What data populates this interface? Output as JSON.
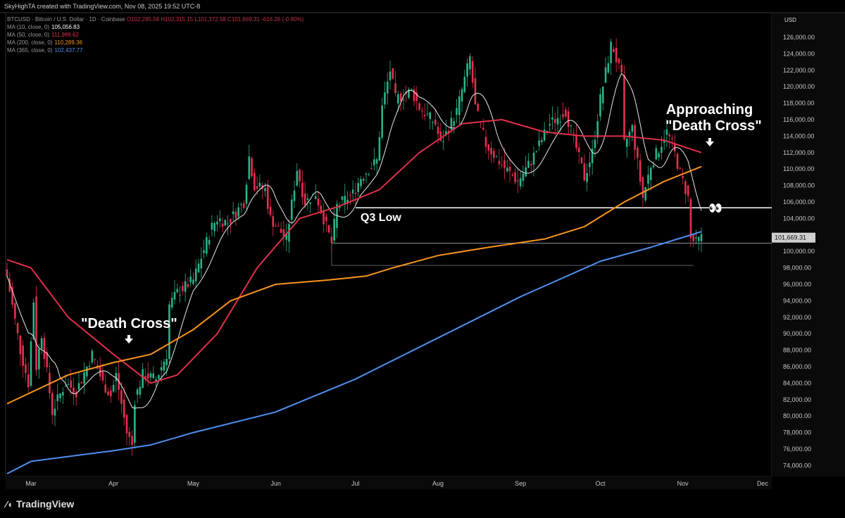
{
  "header": {
    "credit": "SkyHighTA created with TradingView.com, Nov 08, 2025 19:52 UTC-8"
  },
  "legend": {
    "symbol": "BTCUSD · Bitcoin / U.S. Dollar · 1D · Coinbase",
    "ohlc": "O102,285.58 H102,315.15 L101,372.58 C101,669.31 -616.26 (-0.60%)",
    "ma": [
      {
        "label": "MA (10, close, 0)",
        "value": "105,056.83",
        "color": "#e8e8e8"
      },
      {
        "label": "MA (50, close, 0)",
        "value": "111,989.62",
        "color": "#e0304a"
      },
      {
        "label": "MA (200, close, 0)",
        "value": "110,289.36",
        "color": "#f7941d"
      },
      {
        "label": "MA (365, close, 0)",
        "value": "102,437.77",
        "color": "#4f8ff0"
      }
    ]
  },
  "annotations": {
    "death_cross": "\"Death Cross\"",
    "approaching_1": "Approaching",
    "approaching_2": "\"Death Cross\"",
    "q3_low": "Q3 Low",
    "eyes": "👀"
  },
  "footer": {
    "brand": "TradingView"
  },
  "chart_data": {
    "type": "candlestick",
    "currency": "USD",
    "last_price": "101,669.31",
    "ylim": [
      72000,
      127000
    ],
    "yticks": [
      126000,
      124000,
      122000,
      120000,
      118000,
      116000,
      114000,
      112000,
      110000,
      108000,
      106000,
      104000,
      100000,
      98000,
      96000,
      94000,
      92000,
      90000,
      88000,
      86000,
      84000,
      82000,
      80000,
      78000,
      76000,
      74000
    ],
    "xticks": [
      {
        "date": "2025-03-01",
        "label": "Mar"
      },
      {
        "date": "2025-04-01",
        "label": "Apr"
      },
      {
        "date": "2025-05-01",
        "label": "May"
      },
      {
        "date": "2025-06-01",
        "label": "Jun"
      },
      {
        "date": "2025-07-01",
        "label": "Jul"
      },
      {
        "date": "2025-08-01",
        "label": "Aug"
      },
      {
        "date": "2025-09-01",
        "label": "Sep"
      },
      {
        "date": "2025-10-01",
        "label": "Oct"
      },
      {
        "date": "2025-11-01",
        "label": "Nov"
      },
      {
        "date": "2025-12-01",
        "label": "Dec"
      }
    ],
    "close": [
      [
        "02-20",
        97000
      ],
      [
        "02-25",
        88000
      ],
      [
        "02-28",
        84000
      ],
      [
        "03-02",
        94000
      ],
      [
        "03-03",
        86000
      ],
      [
        "03-05",
        90000
      ],
      [
        "03-09",
        80500
      ],
      [
        "03-11",
        82000
      ],
      [
        "03-14",
        84000
      ],
      [
        "03-18",
        83000
      ],
      [
        "03-24",
        87500
      ],
      [
        "03-28",
        84000
      ],
      [
        "03-31",
        82500
      ],
      [
        "04-02",
        85000
      ],
      [
        "04-06",
        78000
      ],
      [
        "04-08",
        76500
      ],
      [
        "04-09",
        82000
      ],
      [
        "04-12",
        85000
      ],
      [
        "04-17",
        84500
      ],
      [
        "04-21",
        87500
      ],
      [
        "04-22",
        93500
      ],
      [
        "04-25",
        95000
      ],
      [
        "05-01",
        96500
      ],
      [
        "05-08",
        103000
      ],
      [
        "05-10",
        104000
      ],
      [
        "05-14",
        103500
      ],
      [
        "05-20",
        106000
      ],
      [
        "05-22",
        111500
      ],
      [
        "05-24",
        108000
      ],
      [
        "05-28",
        107500
      ],
      [
        "05-30",
        104000
      ],
      [
        "06-05",
        101500
      ],
      [
        "06-09",
        110000
      ],
      [
        "06-12",
        106000
      ],
      [
        "06-16",
        107000
      ],
      [
        "06-20",
        103000
      ],
      [
        "06-22",
        101000
      ],
      [
        "06-24",
        105500
      ],
      [
        "06-30",
        107000
      ],
      [
        "07-03",
        109000
      ],
      [
        "07-09",
        111000
      ],
      [
        "07-11",
        117500
      ],
      [
        "07-14",
        122000
      ],
      [
        "07-16",
        118500
      ],
      [
        "07-22",
        119500
      ],
      [
        "07-25",
        117500
      ],
      [
        "07-31",
        115500
      ],
      [
        "08-02",
        113000
      ],
      [
        "08-08",
        117000
      ],
      [
        "08-13",
        123500
      ],
      [
        "08-15",
        117500
      ],
      [
        "08-19",
        113000
      ],
      [
        "08-25",
        110500
      ],
      [
        "08-31",
        108500
      ],
      [
        "09-05",
        111000
      ],
      [
        "09-12",
        115500
      ],
      [
        "09-18",
        117000
      ],
      [
        "09-22",
        112500
      ],
      [
        "09-25",
        109000
      ],
      [
        "09-28",
        112000
      ],
      [
        "10-01",
        118500
      ],
      [
        "10-05",
        125000
      ],
      [
        "10-06",
        124500
      ],
      [
        "10-09",
        121000
      ],
      [
        "10-10",
        113000
      ],
      [
        "10-13",
        115000
      ],
      [
        "10-17",
        106500
      ],
      [
        "10-20",
        110500
      ],
      [
        "10-26",
        114500
      ],
      [
        "10-28",
        113000
      ],
      [
        "10-31",
        109500
      ],
      [
        "11-03",
        106500
      ],
      [
        "11-04",
        101500
      ],
      [
        "11-06",
        101000
      ],
      [
        "11-08",
        101669
      ]
    ],
    "series": [
      {
        "name": "MA (50, close, 0)",
        "color": "#e0304a",
        "points": [
          [
            "02-20",
            99000
          ],
          [
            "03-01",
            98000
          ],
          [
            "03-15",
            92000
          ],
          [
            "04-01",
            87500
          ],
          [
            "04-15",
            84000
          ],
          [
            "04-25",
            85000
          ],
          [
            "05-10",
            90000
          ],
          [
            "05-25",
            98000
          ],
          [
            "06-10",
            104000
          ],
          [
            "06-25",
            105500
          ],
          [
            "07-10",
            107500
          ],
          [
            "07-25",
            112000
          ],
          [
            "08-10",
            115500
          ],
          [
            "08-25",
            116000
          ],
          [
            "09-10",
            114500
          ],
          [
            "09-25",
            114000
          ],
          [
            "10-10",
            114000
          ],
          [
            "10-25",
            113500
          ],
          [
            "11-08",
            112000
          ]
        ]
      },
      {
        "name": "MA (200, close, 0)",
        "color": "#f7941d",
        "points": [
          [
            "02-20",
            81500
          ],
          [
            "03-15",
            85000
          ],
          [
            "04-01",
            86500
          ],
          [
            "04-15",
            87500
          ],
          [
            "05-01",
            90500
          ],
          [
            "05-15",
            94000
          ],
          [
            "06-01",
            96000
          ],
          [
            "06-20",
            96500
          ],
          [
            "07-05",
            97000
          ],
          [
            "07-15",
            98000
          ],
          [
            "08-01",
            99500
          ],
          [
            "08-20",
            100500
          ],
          [
            "09-10",
            101500
          ],
          [
            "09-25",
            103000
          ],
          [
            "10-10",
            106000
          ],
          [
            "10-25",
            108500
          ],
          [
            "11-08",
            110300
          ]
        ]
      },
      {
        "name": "MA (365, close, 0)",
        "color": "#4f8ff0",
        "points": [
          [
            "02-20",
            73000
          ],
          [
            "03-01",
            74500
          ],
          [
            "04-01",
            75800
          ],
          [
            "04-15",
            76500
          ],
          [
            "05-01",
            78000
          ],
          [
            "06-01",
            80500
          ],
          [
            "07-01",
            84500
          ],
          [
            "08-01",
            89500
          ],
          [
            "09-01",
            94500
          ],
          [
            "10-01",
            98800
          ],
          [
            "10-20",
            100500
          ],
          [
            "11-08",
            102400
          ]
        ]
      }
    ],
    "levels": [
      {
        "label": "Q3 Low",
        "value": 105300,
        "from": "07-01",
        "color": "#ffffff"
      },
      {
        "value": 101000,
        "from": "06-22",
        "color": "#8a9099"
      },
      {
        "value": 98300,
        "from": "06-22",
        "to": "11-05",
        "color": "#5a5e66"
      }
    ]
  }
}
